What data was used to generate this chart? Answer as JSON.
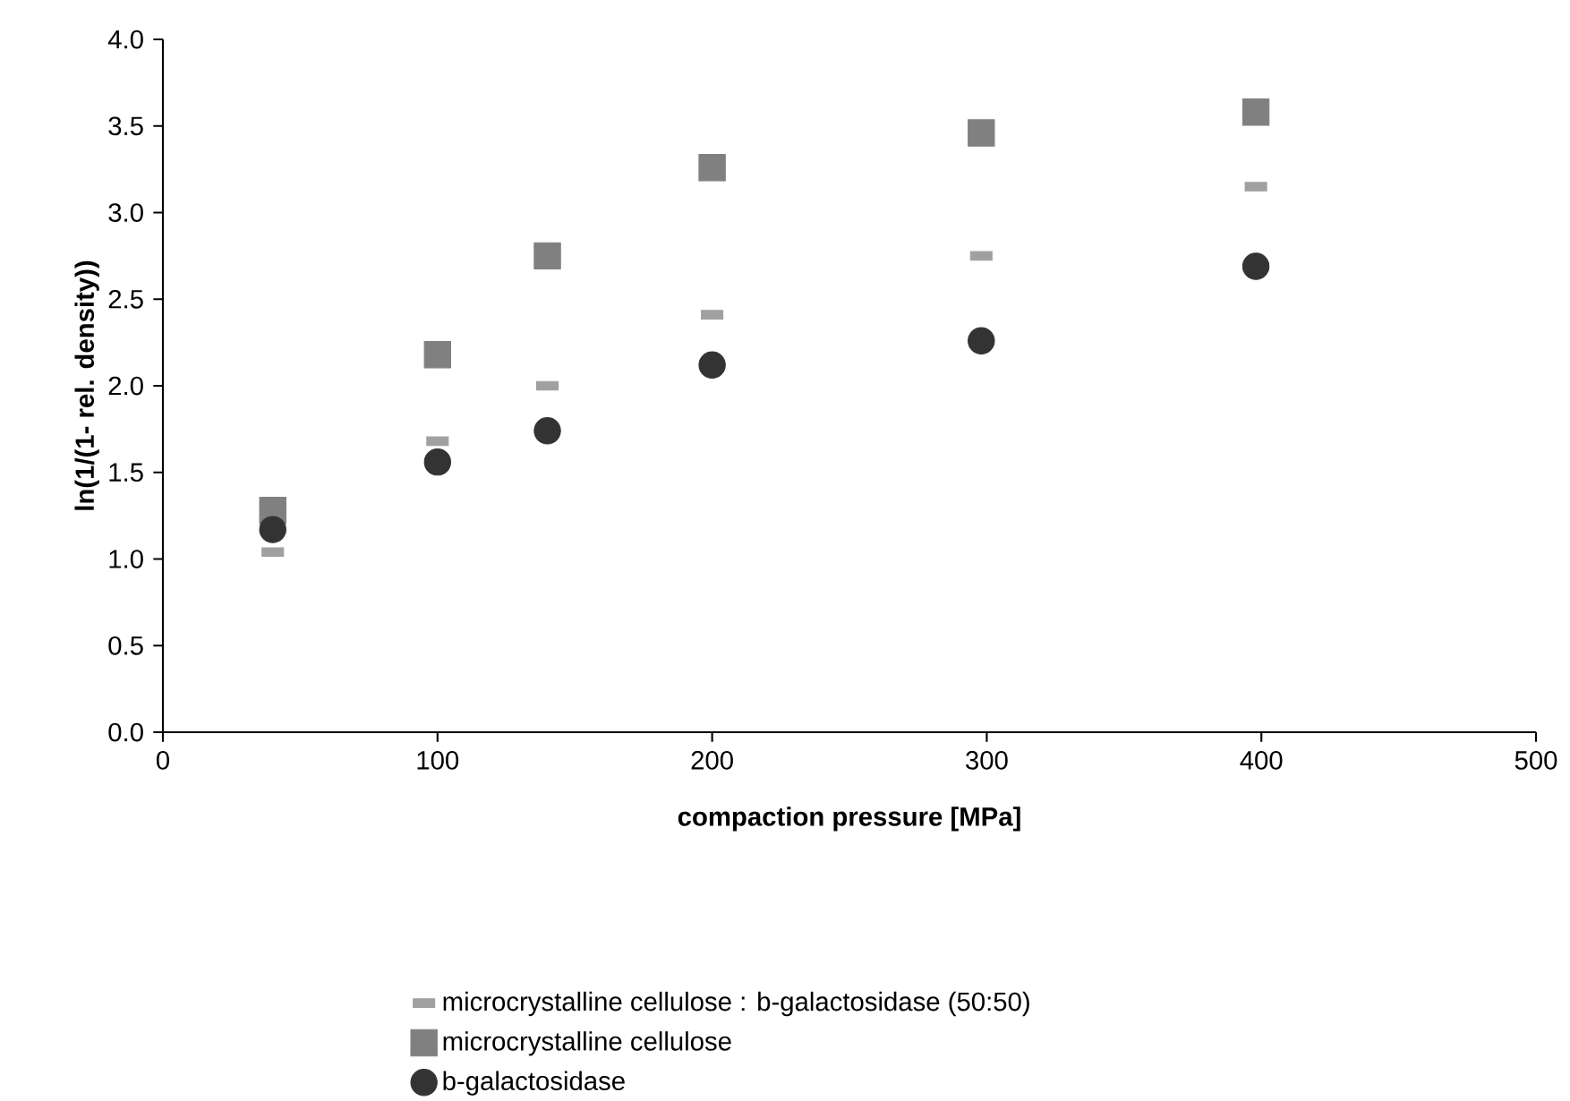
{
  "chart_data": {
    "type": "scatter",
    "xlabel": "compaction pressure [MPa]",
    "ylabel": "ln(1/(1- rel. density))",
    "xlim": [
      0,
      500
    ],
    "xticks": [
      0,
      100,
      200,
      300,
      400,
      500
    ],
    "ylim": [
      0,
      4
    ],
    "yticks": [
      {
        "value": 0,
        "label": "0.0"
      },
      {
        "value": 0.5,
        "label": "0.5"
      },
      {
        "value": 1,
        "label": "1.0"
      },
      {
        "value": 1.5,
        "label": "1.5"
      },
      {
        "value": 2,
        "label": "2.0"
      },
      {
        "value": 2.5,
        "label": "2.5"
      },
      {
        "value": 3,
        "label": "3.0"
      },
      {
        "value": 3.5,
        "label": "3.5"
      },
      {
        "value": 4,
        "label": "4.0"
      }
    ],
    "grid": false,
    "legend": "bottom",
    "series": [
      {
        "name": "microcrystalline cellulose : b-galactosidase (50:50)",
        "color": "#a0a0a0",
        "x": [
          40,
          100,
          140,
          200,
          298,
          398
        ],
        "values": [
          1.04,
          1.68,
          2.0,
          2.41,
          2.75,
          3.15
        ]
      },
      {
        "name": "microcrystalline cellulose",
        "color": "#808080",
        "marker": "square",
        "x": [
          40,
          100,
          140,
          200,
          298,
          398
        ],
        "values": [
          1.28,
          2.18,
          2.75,
          3.26,
          3.46,
          3.58
        ]
      },
      {
        "name": "b-galactosidase",
        "color": "#333333",
        "marker": "circle",
        "x": [
          40,
          100,
          140,
          200,
          298,
          398
        ],
        "values": [
          1.17,
          1.56,
          1.74,
          2.12,
          2.26,
          2.69
        ]
      }
    ]
  }
}
